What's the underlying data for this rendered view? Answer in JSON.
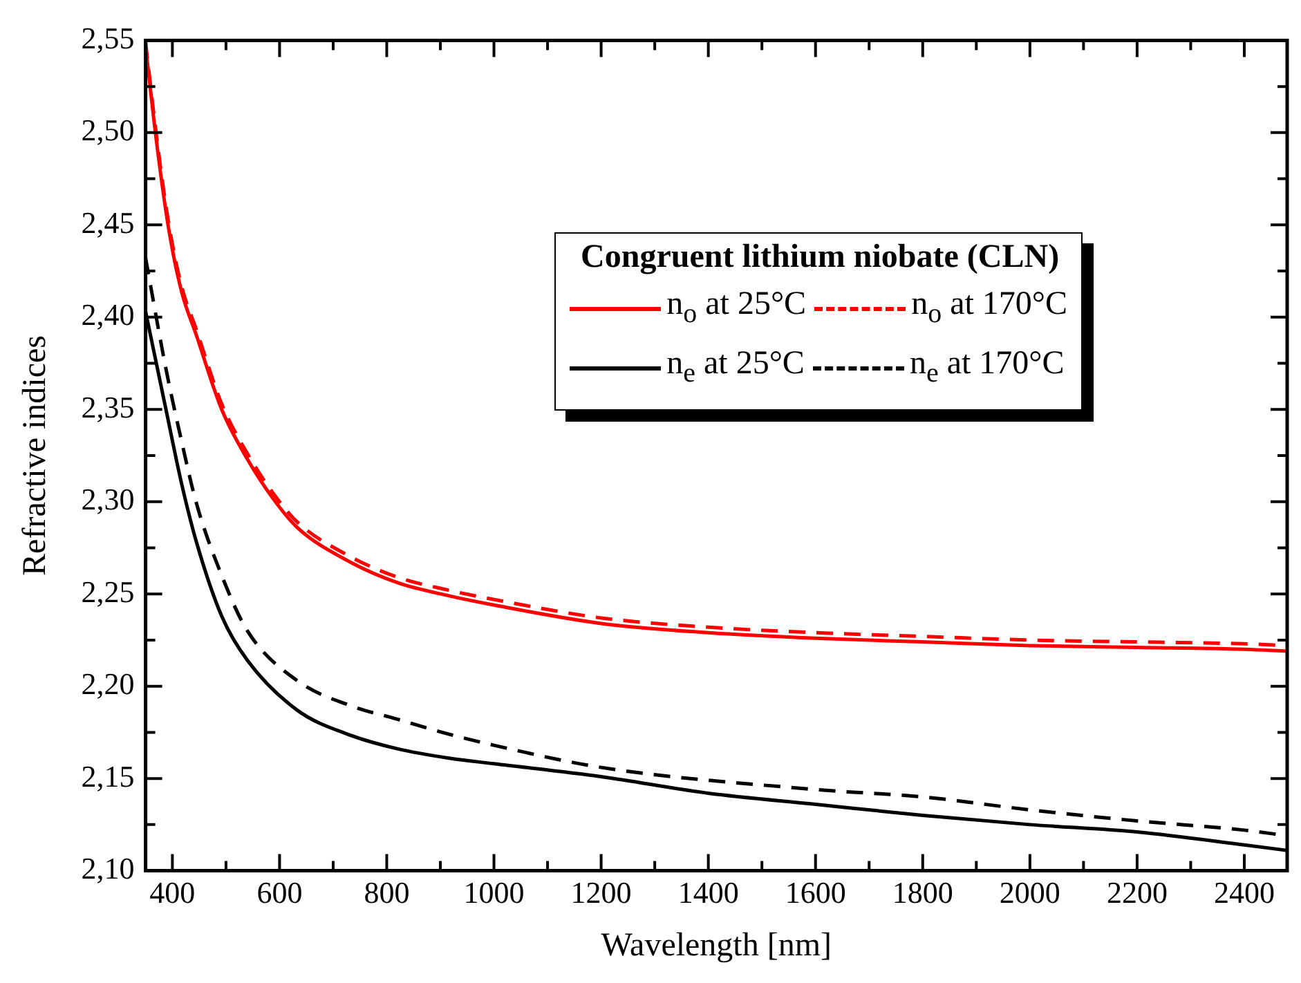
{
  "chart_data": {
    "type": "line",
    "xlabel": "Wavelength [nm]",
    "ylabel": "Refractive indices",
    "legend_title": "Congruent lithium niobate (CLN)",
    "legend": "top right",
    "grid": false,
    "marker": "none",
    "xlim": [
      350,
      2480
    ],
    "xticks": [
      400,
      600,
      800,
      1000,
      1200,
      1400,
      1600,
      1800,
      2000,
      2200,
      2400
    ],
    "ylim": [
      2.1,
      2.55
    ],
    "yticks": [
      {
        "value": 2.1,
        "label": "2,10"
      },
      {
        "value": 2.15,
        "label": "2,15"
      },
      {
        "value": 2.2,
        "label": "2,20"
      },
      {
        "value": 2.25,
        "label": "2,25"
      },
      {
        "value": 2.3,
        "label": "2,30"
      },
      {
        "value": 2.35,
        "label": "2,35"
      },
      {
        "value": 2.4,
        "label": "2,40"
      },
      {
        "value": 2.45,
        "label": "2,45"
      },
      {
        "value": 2.5,
        "label": "2,50"
      },
      {
        "value": 2.55,
        "label": "2,55"
      }
    ],
    "series": [
      {
        "name": "n$_{o}$ at 25°C",
        "color": "#ff0000",
        "line_style": "solid",
        "x": [
          350,
          370,
          393,
          417,
          445,
          492,
          540,
          587,
          633,
          727,
          821,
          916,
          1000,
          1200,
          1400,
          1600,
          1800,
          2000,
          2200,
          2400,
          2480
        ],
        "values": [
          2.547,
          2.496,
          2.448,
          2.414,
          2.39,
          2.35,
          2.323,
          2.302,
          2.286,
          2.268,
          2.256,
          2.249,
          2.244,
          2.234,
          2.229,
          2.226,
          2.224,
          2.222,
          2.221,
          2.22,
          2.219
        ]
      },
      {
        "name": "n$_{o}$ at 170°C",
        "color": "#ff0000",
        "line_style": "dashed",
        "x": [
          350,
          370,
          393,
          417,
          445,
          492,
          540,
          587,
          633,
          727,
          821,
          916,
          1000,
          1200,
          1400,
          1600,
          1800,
          2000,
          2200,
          2400,
          2480
        ],
        "values": [
          2.549,
          2.499,
          2.451,
          2.417,
          2.393,
          2.353,
          2.326,
          2.305,
          2.289,
          2.271,
          2.259,
          2.252,
          2.247,
          2.237,
          2.232,
          2.229,
          2.227,
          2.225,
          2.224,
          2.223,
          2.222
        ]
      },
      {
        "name": "n$_{e}$ at 25°C",
        "color": "#000000",
        "line_style": "solid",
        "x": [
          350,
          388,
          417,
          445,
          492,
          540,
          633,
          727,
          821,
          916,
          1000,
          1200,
          1400,
          1600,
          1800,
          2000,
          2200,
          2400,
          2480
        ],
        "values": [
          2.403,
          2.35,
          2.31,
          2.278,
          2.238,
          2.214,
          2.187,
          2.174,
          2.166,
          2.161,
          2.158,
          2.151,
          2.142,
          2.136,
          2.13,
          2.125,
          2.121,
          2.114,
          2.111
        ]
      },
      {
        "name": "n$_{e}$ at 170°C",
        "color": "#000000",
        "line_style": "dashed",
        "x": [
          350,
          388,
          417,
          445,
          492,
          540,
          633,
          727,
          821,
          916,
          1000,
          1200,
          1600,
          1800,
          2000,
          2200,
          2400,
          2480
        ],
        "values": [
          2.432,
          2.372,
          2.333,
          2.299,
          2.26,
          2.23,
          2.203,
          2.19,
          2.182,
          2.174,
          2.168,
          2.156,
          2.144,
          2.14,
          2.133,
          2.127,
          2.122,
          2.119
        ]
      }
    ]
  }
}
